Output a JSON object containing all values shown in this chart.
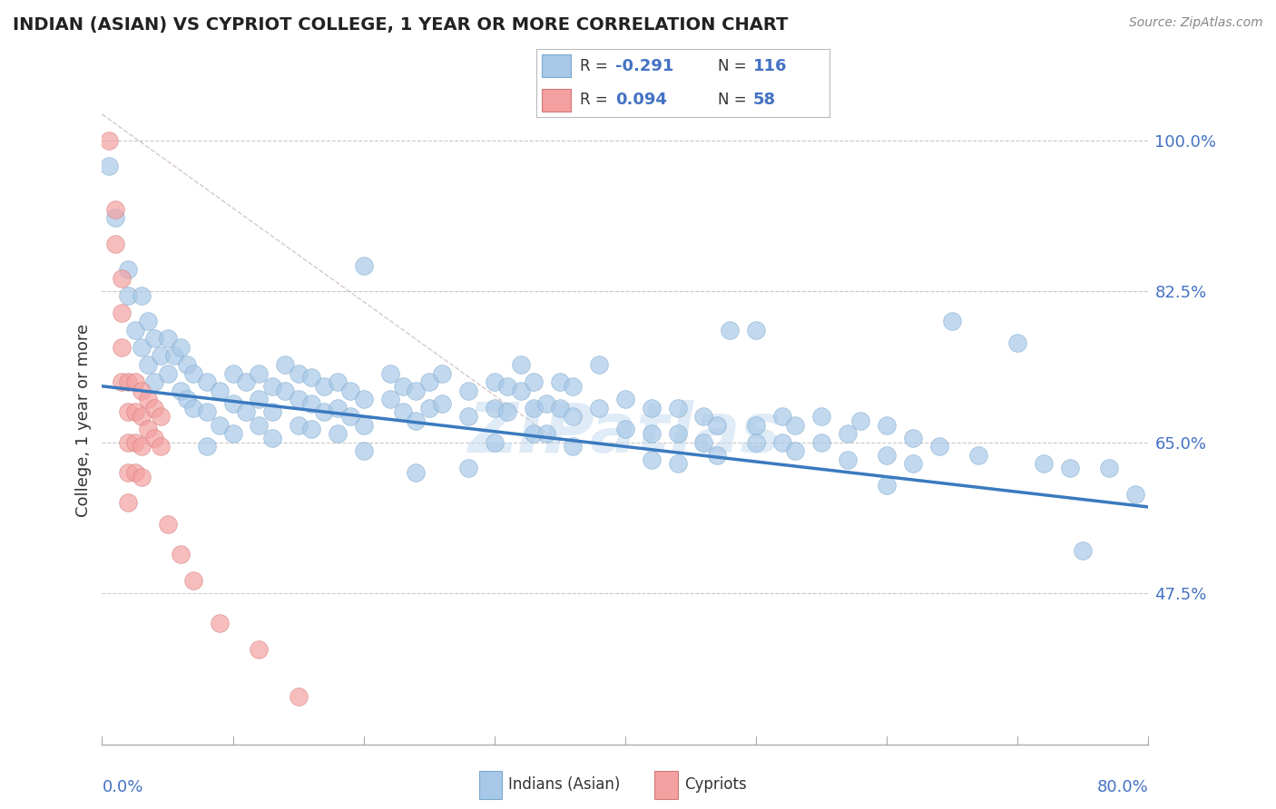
{
  "title": "INDIAN (ASIAN) VS CYPRIOT COLLEGE, 1 YEAR OR MORE CORRELATION CHART",
  "source_text": "Source: ZipAtlas.com",
  "ylabel": "College, 1 year or more",
  "xmin": 0.0,
  "xmax": 0.8,
  "ymin": 0.3,
  "ymax": 1.05,
  "ytick_vals": [
    1.0,
    0.825,
    0.65,
    0.475
  ],
  "ytick_labels": [
    "100.0%",
    "82.5%",
    "65.0%",
    "47.5%"
  ],
  "trend_color": "#3a7abf",
  "trend_x": [
    0.0,
    0.8
  ],
  "trend_y_start": 0.715,
  "trend_y_end": 0.575,
  "blue_color": "#a8c8e8",
  "pink_color": "#f4a0a0",
  "blue_edge_color": "#7aa8cc",
  "pink_edge_color": "#d07878",
  "blue_scatter": [
    [
      0.005,
      0.97
    ],
    [
      0.01,
      0.91
    ],
    [
      0.02,
      0.85
    ],
    [
      0.02,
      0.82
    ],
    [
      0.025,
      0.78
    ],
    [
      0.03,
      0.82
    ],
    [
      0.03,
      0.76
    ],
    [
      0.035,
      0.79
    ],
    [
      0.035,
      0.74
    ],
    [
      0.04,
      0.77
    ],
    [
      0.04,
      0.72
    ],
    [
      0.045,
      0.75
    ],
    [
      0.05,
      0.77
    ],
    [
      0.05,
      0.73
    ],
    [
      0.055,
      0.75
    ],
    [
      0.06,
      0.76
    ],
    [
      0.06,
      0.71
    ],
    [
      0.065,
      0.74
    ],
    [
      0.065,
      0.7
    ],
    [
      0.07,
      0.73
    ],
    [
      0.07,
      0.69
    ],
    [
      0.08,
      0.72
    ],
    [
      0.08,
      0.685
    ],
    [
      0.08,
      0.645
    ],
    [
      0.09,
      0.71
    ],
    [
      0.09,
      0.67
    ],
    [
      0.1,
      0.73
    ],
    [
      0.1,
      0.695
    ],
    [
      0.1,
      0.66
    ],
    [
      0.11,
      0.72
    ],
    [
      0.11,
      0.685
    ],
    [
      0.12,
      0.73
    ],
    [
      0.12,
      0.7
    ],
    [
      0.12,
      0.67
    ],
    [
      0.13,
      0.715
    ],
    [
      0.13,
      0.685
    ],
    [
      0.13,
      0.655
    ],
    [
      0.14,
      0.74
    ],
    [
      0.14,
      0.71
    ],
    [
      0.15,
      0.73
    ],
    [
      0.15,
      0.7
    ],
    [
      0.15,
      0.67
    ],
    [
      0.16,
      0.725
    ],
    [
      0.16,
      0.695
    ],
    [
      0.16,
      0.665
    ],
    [
      0.17,
      0.715
    ],
    [
      0.17,
      0.685
    ],
    [
      0.18,
      0.72
    ],
    [
      0.18,
      0.69
    ],
    [
      0.18,
      0.66
    ],
    [
      0.19,
      0.71
    ],
    [
      0.19,
      0.68
    ],
    [
      0.2,
      0.855
    ],
    [
      0.2,
      0.7
    ],
    [
      0.2,
      0.67
    ],
    [
      0.2,
      0.64
    ],
    [
      0.22,
      0.73
    ],
    [
      0.22,
      0.7
    ],
    [
      0.23,
      0.715
    ],
    [
      0.23,
      0.685
    ],
    [
      0.24,
      0.71
    ],
    [
      0.24,
      0.675
    ],
    [
      0.24,
      0.615
    ],
    [
      0.25,
      0.72
    ],
    [
      0.25,
      0.69
    ],
    [
      0.26,
      0.73
    ],
    [
      0.26,
      0.695
    ],
    [
      0.28,
      0.71
    ],
    [
      0.28,
      0.68
    ],
    [
      0.28,
      0.62
    ],
    [
      0.3,
      0.72
    ],
    [
      0.3,
      0.69
    ],
    [
      0.3,
      0.65
    ],
    [
      0.31,
      0.715
    ],
    [
      0.31,
      0.685
    ],
    [
      0.32,
      0.74
    ],
    [
      0.32,
      0.71
    ],
    [
      0.33,
      0.72
    ],
    [
      0.33,
      0.69
    ],
    [
      0.33,
      0.66
    ],
    [
      0.34,
      0.695
    ],
    [
      0.34,
      0.66
    ],
    [
      0.35,
      0.72
    ],
    [
      0.35,
      0.69
    ],
    [
      0.36,
      0.715
    ],
    [
      0.36,
      0.68
    ],
    [
      0.36,
      0.645
    ],
    [
      0.38,
      0.74
    ],
    [
      0.38,
      0.69
    ],
    [
      0.4,
      0.7
    ],
    [
      0.4,
      0.665
    ],
    [
      0.42,
      0.69
    ],
    [
      0.42,
      0.66
    ],
    [
      0.42,
      0.63
    ],
    [
      0.44,
      0.69
    ],
    [
      0.44,
      0.66
    ],
    [
      0.44,
      0.625
    ],
    [
      0.46,
      0.68
    ],
    [
      0.46,
      0.65
    ],
    [
      0.47,
      0.67
    ],
    [
      0.47,
      0.635
    ],
    [
      0.48,
      0.78
    ],
    [
      0.5,
      0.78
    ],
    [
      0.5,
      0.67
    ],
    [
      0.5,
      0.65
    ],
    [
      0.52,
      0.68
    ],
    [
      0.52,
      0.65
    ],
    [
      0.53,
      0.67
    ],
    [
      0.53,
      0.64
    ],
    [
      0.55,
      0.68
    ],
    [
      0.55,
      0.65
    ],
    [
      0.57,
      0.66
    ],
    [
      0.57,
      0.63
    ],
    [
      0.58,
      0.675
    ],
    [
      0.6,
      0.67
    ],
    [
      0.6,
      0.635
    ],
    [
      0.6,
      0.6
    ],
    [
      0.62,
      0.655
    ],
    [
      0.62,
      0.625
    ],
    [
      0.64,
      0.645
    ],
    [
      0.65,
      0.79
    ],
    [
      0.67,
      0.635
    ],
    [
      0.7,
      0.765
    ],
    [
      0.72,
      0.625
    ],
    [
      0.74,
      0.62
    ],
    [
      0.75,
      0.525
    ],
    [
      0.77,
      0.62
    ],
    [
      0.79,
      0.59
    ]
  ],
  "pink_scatter": [
    [
      0.005,
      1.0
    ],
    [
      0.01,
      0.92
    ],
    [
      0.01,
      0.88
    ],
    [
      0.015,
      0.84
    ],
    [
      0.015,
      0.8
    ],
    [
      0.015,
      0.76
    ],
    [
      0.015,
      0.72
    ],
    [
      0.02,
      0.72
    ],
    [
      0.02,
      0.685
    ],
    [
      0.02,
      0.65
    ],
    [
      0.02,
      0.615
    ],
    [
      0.02,
      0.58
    ],
    [
      0.025,
      0.72
    ],
    [
      0.025,
      0.685
    ],
    [
      0.025,
      0.65
    ],
    [
      0.025,
      0.615
    ],
    [
      0.03,
      0.71
    ],
    [
      0.03,
      0.68
    ],
    [
      0.03,
      0.645
    ],
    [
      0.03,
      0.61
    ],
    [
      0.035,
      0.7
    ],
    [
      0.035,
      0.665
    ],
    [
      0.04,
      0.69
    ],
    [
      0.04,
      0.655
    ],
    [
      0.045,
      0.68
    ],
    [
      0.045,
      0.645
    ],
    [
      0.05,
      0.555
    ],
    [
      0.06,
      0.52
    ],
    [
      0.07,
      0.49
    ],
    [
      0.09,
      0.44
    ],
    [
      0.12,
      0.41
    ],
    [
      0.15,
      0.355
    ]
  ],
  "watermark": "ZIPatlas",
  "background_color": "#ffffff",
  "grid_color": "#c8c8c8",
  "diagonal_color": "#ccbbbb"
}
